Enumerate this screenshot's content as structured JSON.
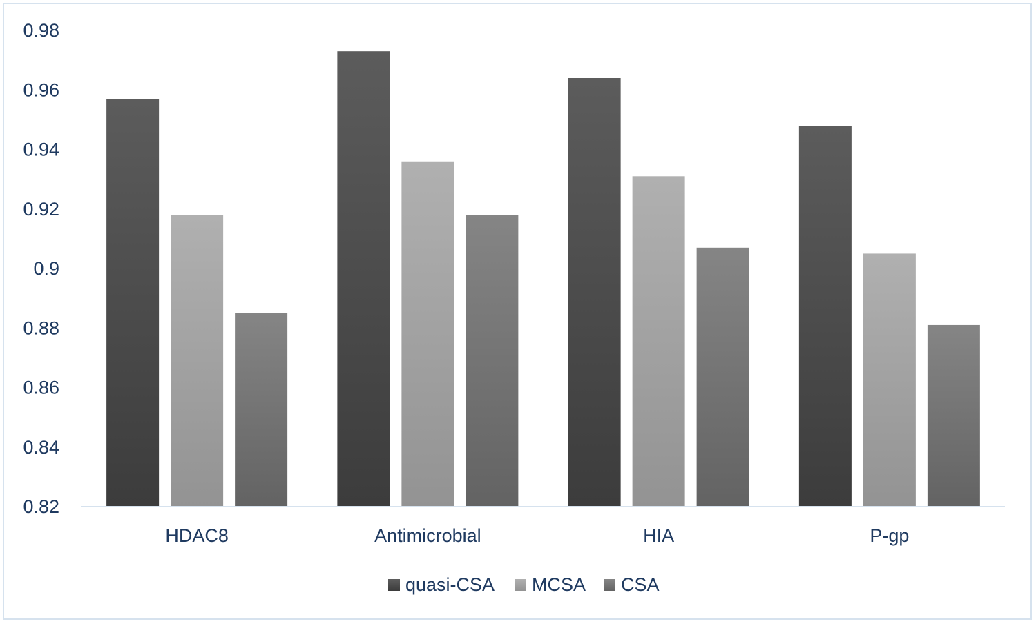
{
  "chart_data": {
    "type": "bar",
    "title": "",
    "xlabel": "",
    "ylabel": "",
    "categories": [
      "HDAC8",
      "Antimicrobial",
      "HIA",
      "P-gp"
    ],
    "series": [
      {
        "name": "quasi-CSA",
        "values": [
          0.957,
          0.973,
          0.964,
          0.948
        ],
        "color": "#4a4a4a"
      },
      {
        "name": "MCSA",
        "values": [
          0.918,
          0.936,
          0.931,
          0.905
        ],
        "color": "#a6a6a6"
      },
      {
        "name": "CSA",
        "values": [
          0.885,
          0.918,
          0.907,
          0.881
        ],
        "color": "#757575"
      }
    ],
    "ylim": [
      0.82,
      0.98
    ],
    "yticks": [
      "0.82",
      "0.84",
      "0.86",
      "0.88",
      "0.9",
      "0.92",
      "0.94",
      "0.96",
      "0.98"
    ],
    "grid": false,
    "legend_position": "bottom-center",
    "axis_color": "#d6e2ee",
    "text_color": "#1f3a60"
  }
}
